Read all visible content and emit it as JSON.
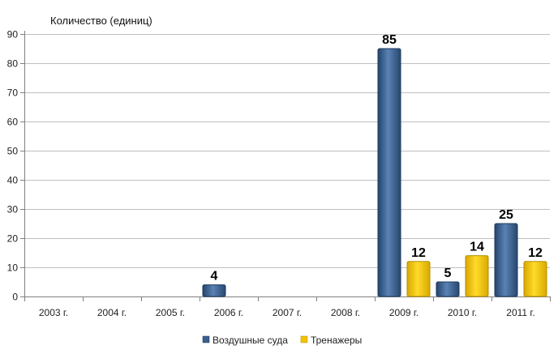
{
  "chart_data": {
    "type": "bar",
    "ylabel": "Количество (единиц)",
    "categories": [
      "2003 г.",
      "2004 г.",
      "2005 г.",
      "2006 г.",
      "2007 г.",
      "2008 г.",
      "2009 г.",
      "2010 г.",
      "2011 г."
    ],
    "series": [
      {
        "name": "Воздушные суда",
        "values": [
          0,
          0,
          0,
          4,
          0,
          0,
          85,
          5,
          25
        ],
        "color": "#3A5F8E"
      },
      {
        "name": "Тренажеры",
        "values": [
          0,
          0,
          0,
          0,
          0,
          0,
          12,
          14,
          12
        ],
        "color": "#F2C200"
      }
    ],
    "ylim": [
      0,
      90
    ],
    "yticks": [
      0,
      10,
      20,
      30,
      40,
      50,
      60,
      70,
      80,
      90
    ],
    "grid": true,
    "legend_position": "bottom"
  }
}
